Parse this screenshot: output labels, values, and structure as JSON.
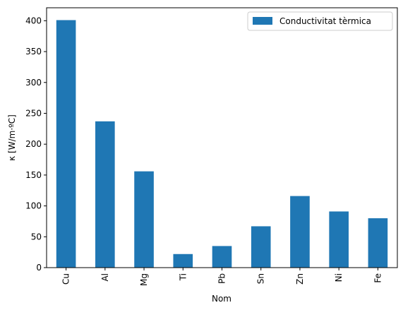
{
  "chart_data": {
    "type": "bar",
    "categories": [
      "Cu",
      "Al",
      "Mg",
      "Ti",
      "Pb",
      "Sn",
      "Zn",
      "Ni",
      "Fe"
    ],
    "series": [
      {
        "name": "Conductivitat tèrmica",
        "values": [
          401,
          237,
          156,
          22,
          35,
          67,
          116,
          91,
          80
        ],
        "color": "#1f77b4"
      }
    ],
    "xlabel": "Nom",
    "ylabel": "κ  [W/m·ºC]",
    "ylim": [
      0,
      421
    ],
    "yticks": [
      0,
      50,
      100,
      150,
      200,
      250,
      300,
      350,
      400
    ],
    "legend_position": "top-right",
    "grid": false
  }
}
